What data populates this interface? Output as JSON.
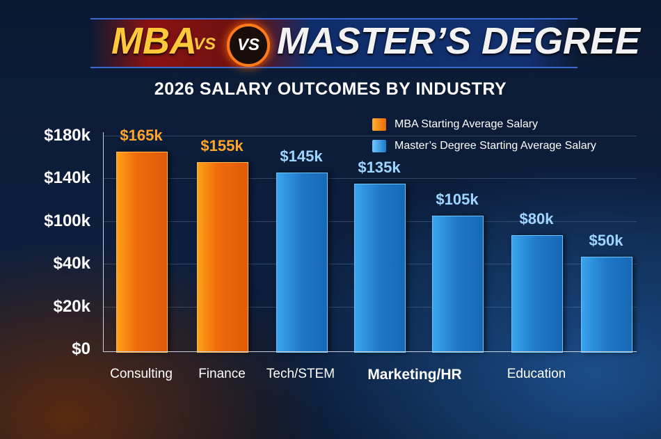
{
  "header": {
    "title_left": "MBA",
    "vs_small": "VS",
    "vs_badge": "VS",
    "title_right": "MASTER’S DEGREE",
    "subtitle": "2026 SALARY OUTCOMES BY INDUSTRY"
  },
  "chart_data": {
    "type": "bar",
    "title": "MBA VS MASTER’S DEGREE",
    "subtitle": "2026 SALARY OUTCOMES BY INDUSTRY",
    "y_ticks": [
      "$0",
      "$20k",
      "$40k",
      "$100k",
      "$140k",
      "$180k"
    ],
    "y_tick_values": [
      0,
      20,
      40,
      100,
      140,
      180
    ],
    "categories": [
      "Consulting",
      "Finance",
      "Tech/STEM",
      "Marketing/HR",
      "Education"
    ],
    "bars": [
      {
        "series": "MBA Starting Average Salary",
        "value": 165,
        "label": "$165k"
      },
      {
        "series": "MBA Starting Average Salary",
        "value": 155,
        "label": "$155k"
      },
      {
        "series": "Master’s Degree Starting Average Salary",
        "value": 145,
        "label": "$145k"
      },
      {
        "series": "Master’s Degree Starting Average Salary",
        "value": 135,
        "label": "$135k"
      },
      {
        "series": "Master’s Degree Starting Average Salary",
        "value": 105,
        "label": "$105k"
      },
      {
        "series": "Master’s Degree Starting Average Salary",
        "value": 80,
        "label": "$80k"
      },
      {
        "series": "Master’s Degree Starting Average Salary",
        "value": 50,
        "label": "$50k"
      }
    ],
    "legend": [
      {
        "name": "MBA Starting Average Salary",
        "color": "#f58a12"
      },
      {
        "name": "Master’s Degree Starting Average Salary",
        "color": "#2e9be8"
      }
    ],
    "legend_position": "top-right",
    "colors": {
      "mba_label": "#ffa62b",
      "ms_label": "#9fd6ff"
    },
    "grid": true
  }
}
